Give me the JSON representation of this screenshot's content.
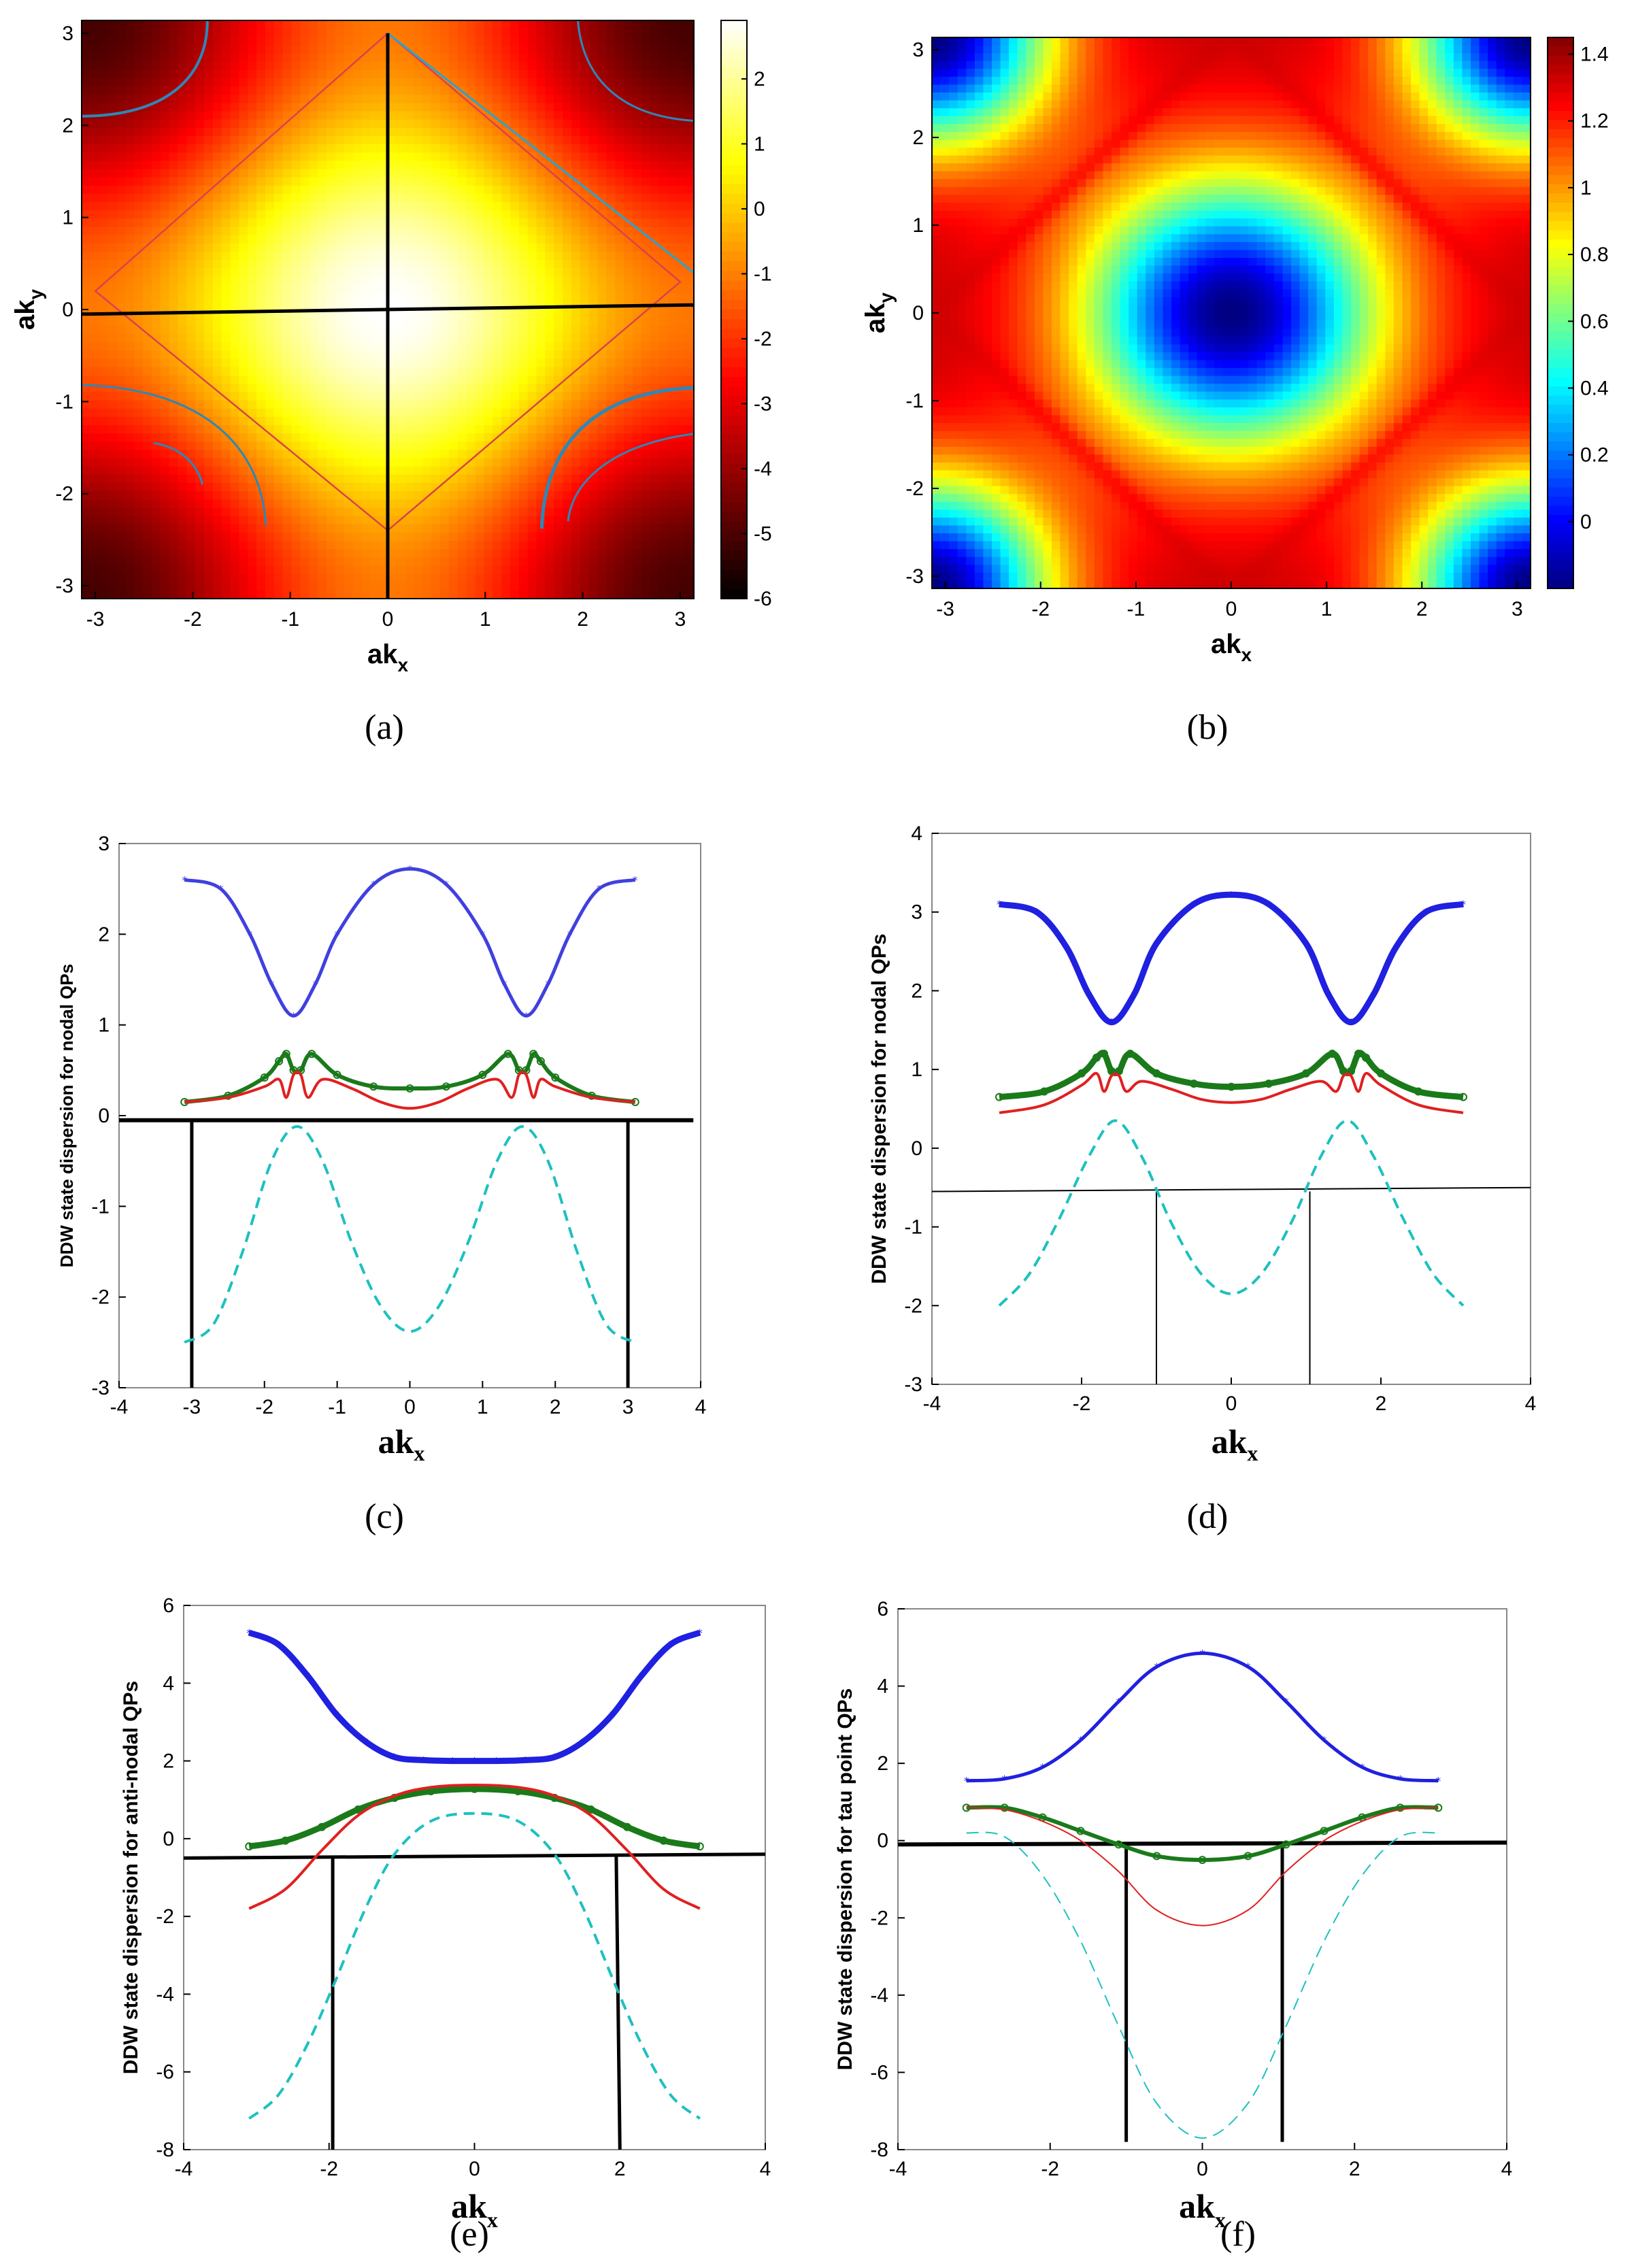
{
  "captions": [
    "(a)",
    "(b)",
    "(c)",
    "(d)",
    "(e)",
    "(f)"
  ],
  "chart_data": [
    {
      "id": "a",
      "type": "heatmap",
      "xlabel_main": "ak",
      "xlabel_sub": "x",
      "ylabel_main": "ak",
      "ylabel_sub": "y",
      "xlim": [
        -3.14,
        3.14
      ],
      "ylim": [
        -3.14,
        3.14
      ],
      "xticks": [
        -3,
        -2,
        -1,
        0,
        1,
        2,
        3
      ],
      "yticks": [
        -3,
        -2,
        -1,
        0,
        1,
        2,
        3
      ],
      "colormap": "hot",
      "colorbar": {
        "min": -6,
        "max": 2.9,
        "ticks": [
          2,
          1,
          0,
          -1,
          -2,
          -3,
          -4,
          -5,
          -6
        ]
      },
      "function": "2*(cos(kx)+cos(ky))-1.0",
      "overlays": [
        {
          "kind": "diamond",
          "color": "#d9434d",
          "points": [
            [
              0,
              3
            ],
            [
              -3,
              0.2
            ],
            [
              0,
              -2.4
            ],
            [
              3,
              0.3
            ]
          ]
        },
        {
          "kind": "line",
          "color": "#2aa4cf",
          "points": [
            [
              0,
              3
            ],
            [
              3.14,
              0.4
            ]
          ]
        },
        {
          "kind": "axis",
          "color": "#000000",
          "points": [
            [
              -3.14,
              -0.05
            ],
            [
              3.14,
              0.05
            ]
          ]
        },
        {
          "kind": "axis",
          "color": "#000000",
          "points": [
            [
              0,
              3
            ],
            [
              0,
              -3.14
            ]
          ]
        }
      ],
      "contours_color": "#2d88b8"
    },
    {
      "id": "b",
      "type": "heatmap",
      "xlabel_main": "ak",
      "xlabel_sub": "x",
      "ylabel_main": "ak",
      "ylabel_sub": "y",
      "xlim": [
        -3.14,
        3.14
      ],
      "ylim": [
        -3.14,
        3.14
      ],
      "xticks": [
        -3,
        -2,
        -1,
        0,
        1,
        2,
        3
      ],
      "yticks": [
        -3,
        -2,
        -1,
        0,
        1,
        2,
        3
      ],
      "colormap": "jet",
      "colorbar": {
        "min": -0.2,
        "max": 1.45,
        "ticks": [
          1.4,
          1.2,
          1,
          0.8,
          0.6,
          0.4,
          0.2,
          0
        ]
      },
      "function": "1.4 - 1.6*exp(-(kx^2+ky^2)/2.5) + ring ridges"
    },
    {
      "id": "c",
      "type": "line",
      "ylabel": "DDW state dispersion for nodal QPs",
      "xlabel_main": "ak",
      "xlabel_sub": "x",
      "xlim": [
        -4,
        4
      ],
      "ylim": [
        -3,
        3
      ],
      "xticks": [
        -4,
        -3,
        -2,
        -1,
        0,
        1,
        2,
        3,
        4
      ],
      "yticks": [
        3,
        2,
        1,
        0,
        -1,
        -2,
        -3
      ],
      "series": [
        {
          "name": "upper band",
          "color": "#4040e0",
          "style": "star",
          "x": [
            -3.1,
            -2.6,
            -2.2,
            -1.9,
            -1.6,
            -1.3,
            -1.0,
            -0.5,
            0.0,
            0.5,
            1.0,
            1.3,
            1.6,
            1.9,
            2.2,
            2.6,
            3.1
          ],
          "y": [
            2.6,
            2.5,
            2.0,
            1.45,
            1.1,
            1.45,
            2.0,
            2.55,
            2.72,
            2.55,
            2.0,
            1.45,
            1.1,
            1.45,
            2.0,
            2.5,
            2.6
          ]
        },
        {
          "name": "green band",
          "color": "#1a7a1a",
          "style": "circle",
          "x": [
            -3.1,
            -2.5,
            -2.0,
            -1.8,
            -1.7,
            -1.6,
            -1.5,
            -1.35,
            -1.0,
            -0.5,
            0.0,
            0.5,
            1.0,
            1.35,
            1.5,
            1.6,
            1.7,
            1.8,
            2.0,
            2.5,
            3.1
          ],
          "y": [
            0.15,
            0.22,
            0.42,
            0.6,
            0.68,
            0.5,
            0.5,
            0.68,
            0.45,
            0.32,
            0.3,
            0.32,
            0.45,
            0.68,
            0.5,
            0.5,
            0.68,
            0.6,
            0.42,
            0.22,
            0.15
          ]
        },
        {
          "name": "red band",
          "color": "#e02020",
          "style": "solid",
          "x": [
            -3.1,
            -2.5,
            -2.0,
            -1.8,
            -1.7,
            -1.6,
            -1.5,
            -1.4,
            -1.2,
            -0.8,
            -0.4,
            0.0,
            0.4,
            0.8,
            1.2,
            1.4,
            1.5,
            1.6,
            1.7,
            1.8,
            2.0,
            2.5,
            3.1
          ],
          "y": [
            0.15,
            0.2,
            0.32,
            0.4,
            0.2,
            0.45,
            0.45,
            0.2,
            0.4,
            0.3,
            0.15,
            0.08,
            0.15,
            0.3,
            0.4,
            0.2,
            0.45,
            0.45,
            0.2,
            0.4,
            0.32,
            0.2,
            0.15
          ]
        },
        {
          "name": "cyan band",
          "color": "#1ec0c0",
          "style": "dashed",
          "x": [
            -3.1,
            -2.7,
            -2.3,
            -1.9,
            -1.55,
            -1.2,
            -0.8,
            -0.4,
            0.0,
            0.4,
            0.8,
            1.2,
            1.55,
            1.9,
            2.3,
            2.7,
            3.1
          ],
          "y": [
            -2.5,
            -2.3,
            -1.5,
            -0.5,
            -0.12,
            -0.5,
            -1.4,
            -2.1,
            -2.38,
            -2.1,
            -1.4,
            -0.5,
            -0.12,
            -0.5,
            -1.5,
            -2.3,
            -2.5
          ]
        }
      ],
      "guides": [
        {
          "points": [
            [
              -4,
              -0.05
            ],
            [
              3.9,
              -0.05
            ]
          ],
          "width": 6
        },
        {
          "points": [
            [
              -3,
              -0.05
            ],
            [
              -3,
              -3
            ]
          ],
          "width": 5
        },
        {
          "points": [
            [
              3,
              -0.05
            ],
            [
              3,
              -3
            ]
          ],
          "width": 5
        }
      ]
    },
    {
      "id": "d",
      "type": "line",
      "ylabel": "DDW state dispersion for nodal QPs",
      "xlabel_main": "ak",
      "xlabel_sub": "x",
      "xlim": [
        -4,
        4
      ],
      "ylim": [
        -3,
        4
      ],
      "xticks": [
        -4,
        -2,
        0,
        2,
        4
      ],
      "yticks": [
        4,
        3,
        2,
        1,
        0,
        -1,
        -2,
        -3
      ],
      "series": [
        {
          "name": "upper band",
          "color": "#2020e0",
          "style": "star",
          "x": [
            -3.1,
            -2.6,
            -2.2,
            -1.9,
            -1.6,
            -1.3,
            -1.0,
            -0.5,
            0.0,
            0.5,
            1.0,
            1.3,
            1.6,
            1.9,
            2.2,
            2.6,
            3.1
          ],
          "y": [
            3.1,
            3.0,
            2.55,
            1.95,
            1.6,
            1.95,
            2.6,
            3.1,
            3.22,
            3.1,
            2.6,
            1.95,
            1.6,
            1.95,
            2.55,
            3.0,
            3.1
          ]
        },
        {
          "name": "green band",
          "color": "#1a7a1a",
          "style": "circle",
          "x": [
            -3.1,
            -2.5,
            -2.0,
            -1.8,
            -1.7,
            -1.6,
            -1.5,
            -1.35,
            -1.0,
            -0.5,
            0.0,
            0.5,
            1.0,
            1.35,
            1.5,
            1.6,
            1.7,
            1.8,
            2.0,
            2.5,
            3.1
          ],
          "y": [
            0.65,
            0.72,
            0.95,
            1.15,
            1.2,
            0.98,
            0.98,
            1.2,
            0.95,
            0.82,
            0.78,
            0.82,
            0.95,
            1.2,
            0.98,
            0.98,
            1.2,
            1.15,
            0.95,
            0.72,
            0.65
          ]
        },
        {
          "name": "red band",
          "color": "#e02020",
          "style": "solid",
          "x": [
            -3.1,
            -2.5,
            -2.0,
            -1.8,
            -1.7,
            -1.6,
            -1.5,
            -1.4,
            -1.2,
            -0.8,
            -0.4,
            0.0,
            0.4,
            0.8,
            1.2,
            1.4,
            1.5,
            1.6,
            1.7,
            1.8,
            2.0,
            2.5,
            3.1
          ],
          "y": [
            0.45,
            0.55,
            0.8,
            0.95,
            0.72,
            0.92,
            0.92,
            0.72,
            0.85,
            0.75,
            0.62,
            0.58,
            0.62,
            0.75,
            0.85,
            0.72,
            0.92,
            0.92,
            0.72,
            0.95,
            0.8,
            0.55,
            0.45
          ]
        },
        {
          "name": "cyan band",
          "color": "#1ec0c0",
          "style": "dashed",
          "x": [
            -3.1,
            -2.7,
            -2.3,
            -1.9,
            -1.55,
            -1.2,
            -0.8,
            -0.4,
            0.0,
            0.4,
            0.8,
            1.2,
            1.55,
            1.9,
            2.3,
            2.7,
            3.1
          ],
          "y": [
            -2.0,
            -1.6,
            -0.9,
            -0.1,
            0.35,
            -0.1,
            -0.95,
            -1.6,
            -1.85,
            -1.6,
            -0.95,
            -0.1,
            0.35,
            -0.1,
            -0.9,
            -1.6,
            -2.0
          ]
        }
      ],
      "guides": [
        {
          "points": [
            [
              -4,
              -0.55
            ],
            [
              4,
              -0.5
            ]
          ],
          "width": 2
        },
        {
          "points": [
            [
              -1.0,
              -0.55
            ],
            [
              -1.0,
              -3
            ]
          ],
          "width": 2
        },
        {
          "points": [
            [
              1.05,
              -0.55
            ],
            [
              1.05,
              -3
            ]
          ],
          "width": 2
        }
      ]
    },
    {
      "id": "e",
      "type": "line",
      "ylabel": "DDW state dispersion for anti-nodal QPs",
      "xlabel_main": "ak",
      "xlabel_sub": "x",
      "xlim": [
        -4,
        4
      ],
      "ylim": [
        -8,
        6
      ],
      "xticks": [
        -4,
        -2,
        0,
        2,
        4
      ],
      "yticks": [
        6,
        4,
        2,
        0,
        -2,
        -4,
        -6,
        -8
      ],
      "series": [
        {
          "name": "upper band",
          "color": "#2020e0",
          "style": "star",
          "x": [
            -3.1,
            -2.7,
            -2.3,
            -1.9,
            -1.5,
            -1.1,
            -0.7,
            -0.3,
            0.0,
            0.3,
            0.7,
            1.1,
            1.5,
            1.9,
            2.3,
            2.7,
            3.1
          ],
          "y": [
            5.3,
            5.0,
            4.2,
            3.2,
            2.5,
            2.1,
            2.02,
            2.0,
            2.0,
            2.0,
            2.02,
            2.1,
            2.5,
            3.2,
            4.2,
            5.0,
            5.3
          ]
        },
        {
          "name": "green band",
          "color": "#1a7a1a",
          "style": "circle",
          "x": [
            -3.1,
            -2.6,
            -2.1,
            -1.6,
            -1.1,
            -0.6,
            0.0,
            0.6,
            1.1,
            1.6,
            2.1,
            2.6,
            3.1
          ],
          "y": [
            -0.2,
            -0.05,
            0.3,
            0.75,
            1.05,
            1.22,
            1.28,
            1.22,
            1.05,
            0.75,
            0.3,
            -0.05,
            -0.2
          ]
        },
        {
          "name": "red band",
          "color": "#e02020",
          "style": "solid",
          "x": [
            -3.1,
            -2.6,
            -2.1,
            -1.6,
            -1.1,
            -0.6,
            0.0,
            0.6,
            1.1,
            1.6,
            2.1,
            2.6,
            3.1
          ],
          "y": [
            -1.8,
            -1.3,
            -0.3,
            0.6,
            1.1,
            1.32,
            1.38,
            1.32,
            1.1,
            0.6,
            -0.3,
            -1.3,
            -1.8
          ]
        },
        {
          "name": "cyan band",
          "color": "#1ec0c0",
          "style": "dashed",
          "x": [
            -3.1,
            -2.7,
            -2.3,
            -1.9,
            -1.5,
            -1.1,
            -0.6,
            0.0,
            0.6,
            1.1,
            1.5,
            1.9,
            2.3,
            2.7,
            3.1
          ],
          "y": [
            -7.2,
            -6.6,
            -5.3,
            -3.6,
            -1.8,
            -0.4,
            0.45,
            0.65,
            0.45,
            -0.4,
            -1.8,
            -3.6,
            -5.3,
            -6.6,
            -7.2
          ]
        }
      ],
      "guides": [
        {
          "points": [
            [
              -4,
              -0.5
            ],
            [
              4,
              -0.4
            ]
          ],
          "width": 5
        },
        {
          "points": [
            [
              -1.95,
              -0.5
            ],
            [
              -1.95,
              -8
            ]
          ],
          "width": 5
        },
        {
          "points": [
            [
              1.95,
              -0.45
            ],
            [
              2.0,
              -8
            ]
          ],
          "width": 5
        }
      ]
    },
    {
      "id": "f",
      "type": "line",
      "ylabel": "DDW state dispersion for tau point QPs",
      "xlabel_main": "ak",
      "xlabel_sub": "x",
      "xlim": [
        -4,
        4
      ],
      "ylim": [
        -8,
        6
      ],
      "xticks": [
        -4,
        -2,
        0,
        2,
        4
      ],
      "yticks": [
        6,
        4,
        2,
        0,
        -2,
        -4,
        -6,
        -8
      ],
      "series": [
        {
          "name": "upper band",
          "color": "#2020e0",
          "style": "star",
          "x": [
            -3.1,
            -2.6,
            -2.1,
            -1.6,
            -1.1,
            -0.6,
            0.0,
            0.6,
            1.1,
            1.6,
            2.1,
            2.6,
            3.1
          ],
          "y": [
            1.55,
            1.6,
            1.9,
            2.6,
            3.6,
            4.5,
            4.85,
            4.5,
            3.6,
            2.6,
            1.9,
            1.6,
            1.55
          ]
        },
        {
          "name": "green band",
          "color": "#1a7a1a",
          "style": "circle",
          "x": [
            -3.1,
            -2.6,
            -2.1,
            -1.6,
            -1.1,
            -0.6,
            0.0,
            0.6,
            1.1,
            1.6,
            2.1,
            2.6,
            3.1
          ],
          "y": [
            0.85,
            0.85,
            0.6,
            0.25,
            -0.1,
            -0.4,
            -0.5,
            -0.4,
            -0.1,
            0.25,
            0.6,
            0.85,
            0.85
          ]
        },
        {
          "name": "red band",
          "color": "#e02020",
          "style": "thin",
          "x": [
            -3.1,
            -2.6,
            -2.1,
            -1.6,
            -1.1,
            -0.6,
            0.0,
            0.6,
            1.1,
            1.6,
            2.1,
            2.6,
            3.1
          ],
          "y": [
            0.85,
            0.8,
            0.5,
            0.0,
            -0.8,
            -1.8,
            -2.2,
            -1.8,
            -0.8,
            0.0,
            0.5,
            0.8,
            0.85
          ]
        },
        {
          "name": "cyan band",
          "color": "#1ec0c0",
          "style": "thin-dashed",
          "x": [
            -3.1,
            -2.6,
            -2.1,
            -1.6,
            -1.1,
            -0.6,
            0.0,
            0.6,
            1.1,
            1.6,
            2.1,
            2.6,
            3.1
          ],
          "y": [
            0.2,
            0.1,
            -0.9,
            -2.6,
            -4.8,
            -6.8,
            -7.7,
            -6.8,
            -4.8,
            -2.6,
            -0.9,
            0.1,
            0.2
          ]
        }
      ],
      "guides": [
        {
          "points": [
            [
              -4,
              -0.1
            ],
            [
              4,
              -0.05
            ]
          ],
          "width": 6
        },
        {
          "points": [
            [
              -1.0,
              -0.1
            ],
            [
              -1.0,
              -7.8
            ]
          ],
          "width": 5
        },
        {
          "points": [
            [
              1.05,
              -0.1
            ],
            [
              1.05,
              -7.8
            ]
          ],
          "width": 5
        }
      ]
    }
  ]
}
